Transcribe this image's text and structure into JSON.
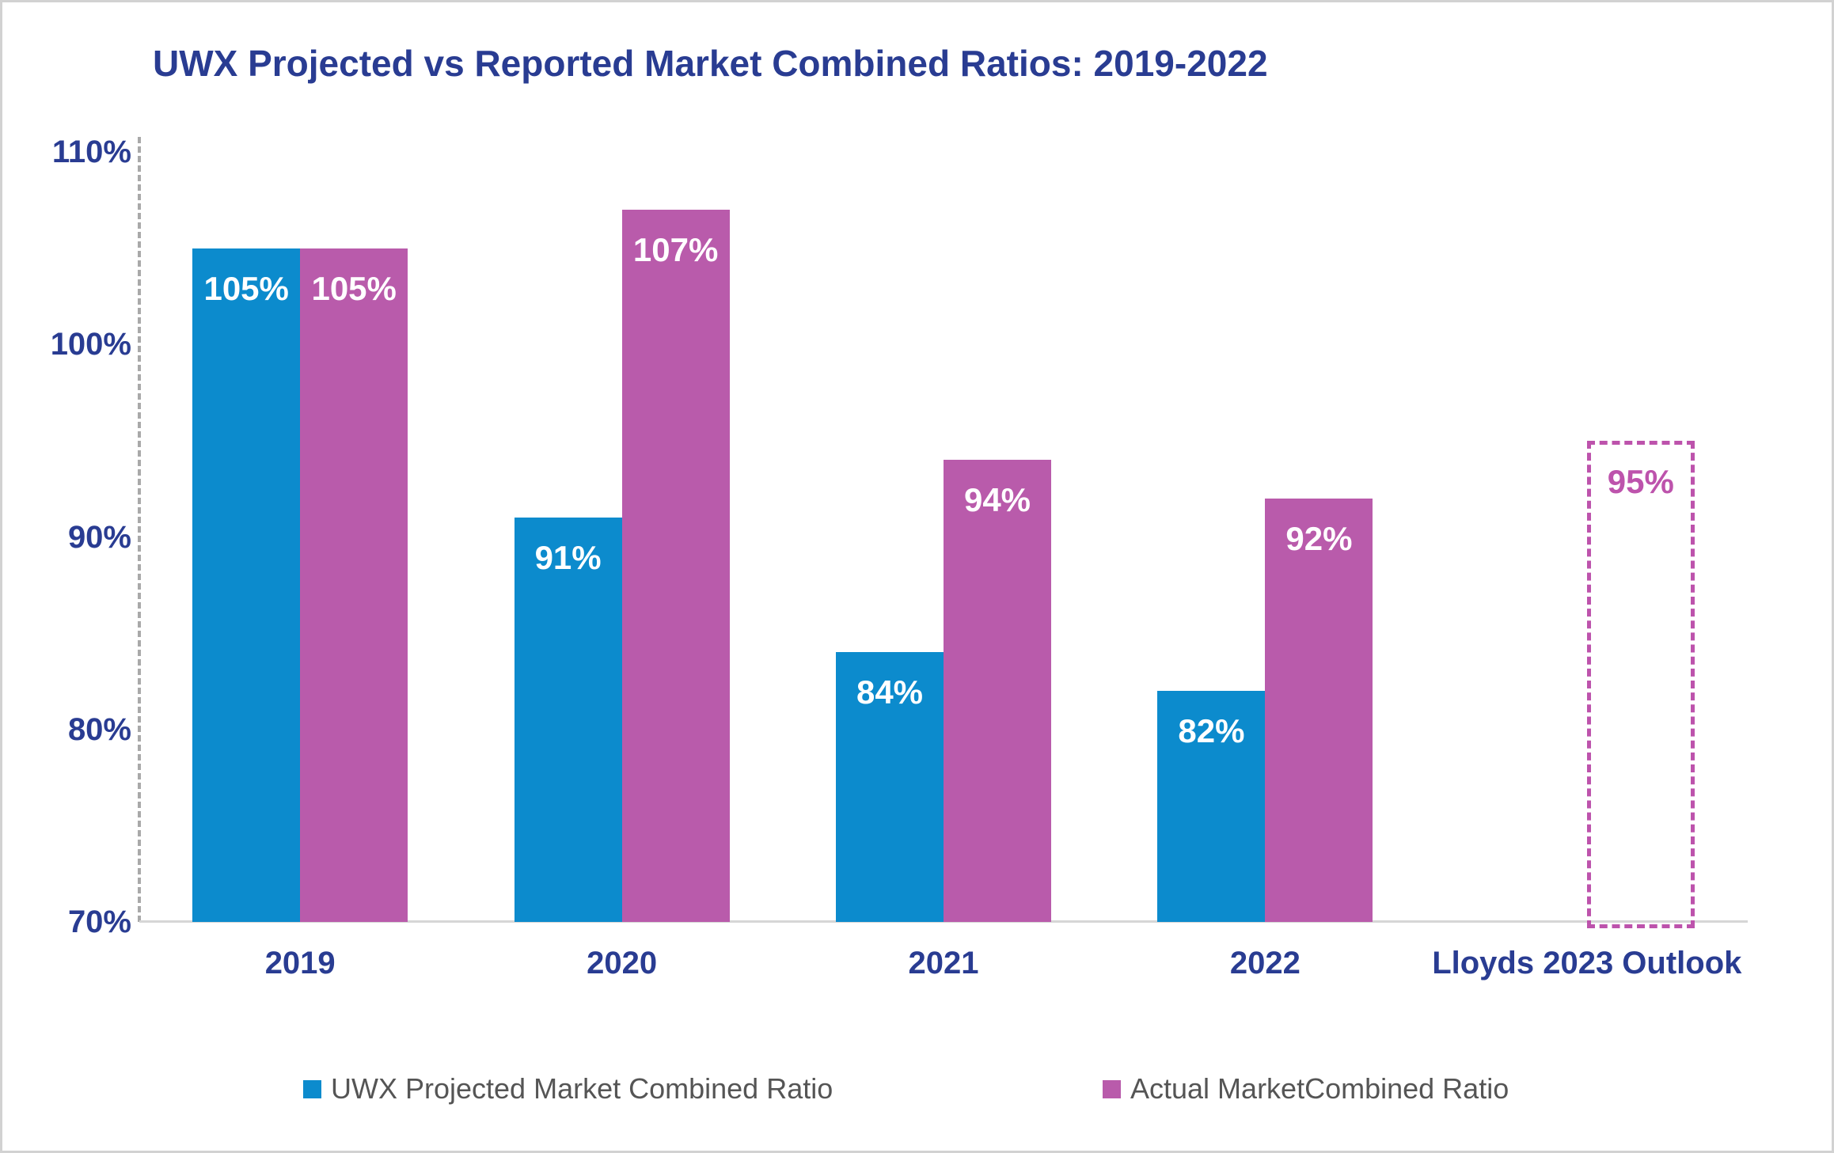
{
  "chart_data": {
    "type": "bar",
    "title": "UWX Projected vs Reported Market Combined Ratios: 2019-2022",
    "categories": [
      "2019",
      "2020",
      "2021",
      "2022",
      "Lloyds 2023 Outlook"
    ],
    "series": [
      {
        "name": "UWX Projected Market Combined Ratio",
        "color": "#0c8bcd",
        "values": [
          105,
          91,
          84,
          82,
          null
        ],
        "labels": [
          "105%",
          "91%",
          "84%",
          "82%",
          null
        ]
      },
      {
        "name": "Actual MarketCombined Ratio",
        "color": "#b95bab",
        "values": [
          105,
          107,
          94,
          92,
          null
        ],
        "labels": [
          "105%",
          "107%",
          "94%",
          "92%",
          null
        ]
      }
    ],
    "outlook": {
      "category": "Lloyds 2023 Outlook",
      "value": 95,
      "label": "95%",
      "style": "dashed-outline",
      "color": "#bd53ac"
    },
    "y_axis": {
      "min": 70,
      "max": 110,
      "step": 10,
      "tick_labels": [
        "110%",
        "100%",
        "90%",
        "80%",
        "70%"
      ],
      "format": "percent"
    },
    "ylim": [
      70,
      110
    ],
    "grid": false,
    "legend_position": "bottom"
  },
  "colors": {
    "title_text": "#293c92",
    "axis_text": "#293c92",
    "bar_label_text": "#ffffff",
    "legend_text": "#555555",
    "baseline": "#d6d6d6",
    "y_axis_dash": "#a9a9a9",
    "canvas_border": "#d2d2d2",
    "background": "#ffffff"
  }
}
